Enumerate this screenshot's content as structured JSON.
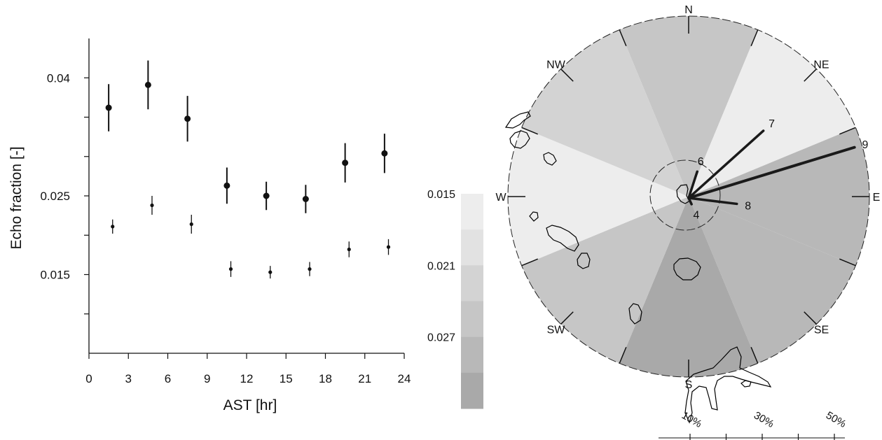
{
  "chart_data": [
    {
      "type": "scatter",
      "xlabel": "AST [hr]",
      "ylabel": "Echo fraction [-]",
      "xlim": [
        0,
        24
      ],
      "ylim": [
        0.005,
        0.045
      ],
      "xticks": [
        "0",
        "3",
        "6",
        "9",
        "12",
        "15",
        "18",
        "21",
        "24"
      ],
      "yticks": [
        "0.04",
        "0.025",
        "0.015"
      ],
      "grid": false,
      "series": [
        {
          "marker": "large-dot",
          "x": [
            1.5,
            4.5,
            7.5,
            10.5,
            13.5,
            16.5,
            19.5,
            22.5
          ],
          "y": [
            0.0362,
            0.0391,
            0.0348,
            0.0263,
            0.025,
            0.0246,
            0.0292,
            0.0304
          ],
          "err": [
            0.003,
            0.0031,
            0.0029,
            0.0023,
            0.0018,
            0.0018,
            0.0025,
            0.0025
          ]
        },
        {
          "marker": "small-dot",
          "x": [
            1.8,
            4.8,
            7.8,
            10.8,
            13.8,
            16.8,
            19.8,
            22.8
          ],
          "y": [
            0.0211,
            0.0238,
            0.0214,
            0.0157,
            0.0153,
            0.0157,
            0.0182,
            0.0185
          ],
          "err": [
            0.0009,
            0.0012,
            0.0012,
            0.001,
            0.0008,
            0.0009,
            0.001,
            0.001
          ]
        }
      ]
    },
    {
      "type": "polar",
      "directions": [
        "N",
        "NE",
        "E",
        "SE",
        "S",
        "SW",
        "W",
        "NW"
      ],
      "sector_echo_fraction": [
        0.021,
        0.016,
        0.024,
        0.024,
        0.027,
        0.022,
        0.015,
        0.02
      ],
      "colorbar": {
        "ticks": [
          "0.015",
          "0.021",
          "0.027"
        ],
        "colors": [
          "#ededed",
          "#e2e2e2",
          "#d3d3d3",
          "#c6c6c6",
          "#b8b8b8",
          "#a9a9a9"
        ]
      },
      "wind_frequency": [
        {
          "label": "9",
          "direction_deg": 73,
          "percent": 50
        },
        {
          "label": "7",
          "direction_deg": 48,
          "percent": 29
        },
        {
          "label": "6",
          "direction_deg": 18,
          "percent": 8
        },
        {
          "label": "8",
          "direction_deg": 97,
          "percent": 14
        },
        {
          "label": "4",
          "direction_deg": 155,
          "percent": 2
        }
      ],
      "radial_scale": [
        "10%",
        "30%",
        "50%"
      ]
    }
  ]
}
